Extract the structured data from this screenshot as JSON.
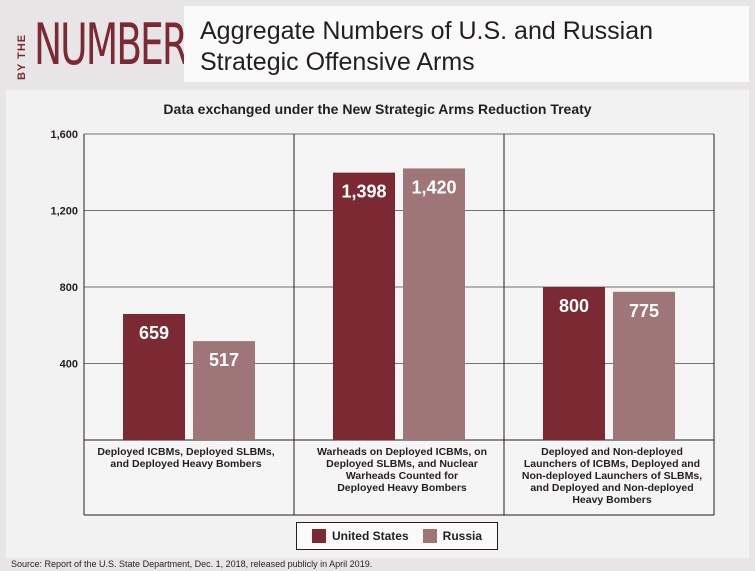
{
  "header": {
    "logo_by": "BY THE",
    "logo_numbers": "NUMBERS",
    "title": "Aggregate Numbers of U.S. and Russian Strategic Offensive Arms"
  },
  "chart_data": {
    "type": "bar",
    "title": "Data exchanged under the New Strategic Arms Reduction Treaty",
    "categories": [
      "Deployed ICBMs, Deployed SLBMs, and Deployed Heavy Bombers",
      "Warheads on Deployed ICBMs, on Deployed SLBMs, and Nuclear Warheads Counted for Deployed Heavy Bombers",
      "Deployed and Non-deployed Launchers of ICBMs, Deployed and Non-deployed Launchers of SLBMs, and Deployed and Non-deployed Heavy Bombers"
    ],
    "series": [
      {
        "name": "United States",
        "color": "#7b2a33",
        "values": [
          659,
          1398,
          800
        ],
        "labels": [
          "659",
          "1,398",
          "800"
        ]
      },
      {
        "name": "Russia",
        "color": "#9e7678",
        "values": [
          517,
          1420,
          775
        ],
        "labels": [
          "517",
          "1,420",
          "775"
        ]
      }
    ],
    "yticks": [
      400,
      800,
      1200,
      1600
    ],
    "ytick_labels": [
      "400",
      "800",
      "1,200",
      "1,600"
    ],
    "ylim": [
      0,
      1600
    ],
    "grid": true,
    "legend_position": "bottom-center"
  },
  "legend": {
    "us_label": "United States",
    "russia_label": "Russia"
  },
  "footer": {
    "source": "Source: Report of the U.S. State Department, Dec. 1, 2018, released publicly in April 2019."
  }
}
